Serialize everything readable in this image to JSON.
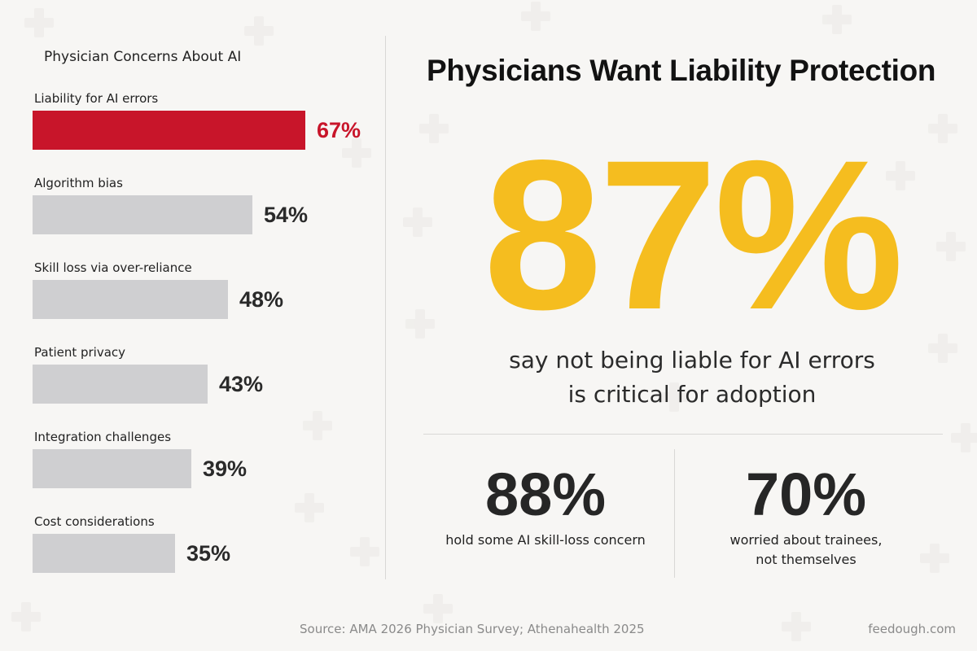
{
  "left_panel": {
    "title": "Physician Concerns About AI"
  },
  "headline": "Physicians Want Liability Protection",
  "big_stat": {
    "value": "87%",
    "caption_line1": "say not being liable for AI errors",
    "caption_line2": "is critical for adoption"
  },
  "sub_stats": [
    {
      "value": "88%",
      "caption_line1": "hold some AI skill-loss concern"
    },
    {
      "value": "70%",
      "caption_line1": "worried about trainees,",
      "caption_line2": "not themselves"
    }
  ],
  "footer": {
    "source": "Source:  AMA 2026 Physician Survey; Athenahealth 2025",
    "site": "feedough.com"
  },
  "colors": {
    "highlight": "#c8152a",
    "bar": "#cfcfd1",
    "accent": "#f5bd1f"
  },
  "chart_data": {
    "type": "bar",
    "orientation": "horizontal",
    "title": "Physician Concerns About AI",
    "categories": [
      "Liability for AI errors",
      "Algorithm bias",
      "Skill loss via over-reliance",
      "Patient privacy",
      "Integration challenges",
      "Cost considerations"
    ],
    "values": [
      67,
      54,
      48,
      43,
      39,
      35
    ],
    "value_labels": [
      "67%",
      "54%",
      "48%",
      "43%",
      "39%",
      "35%"
    ],
    "unit": "%",
    "highlight_index": 0,
    "grid": false
  }
}
